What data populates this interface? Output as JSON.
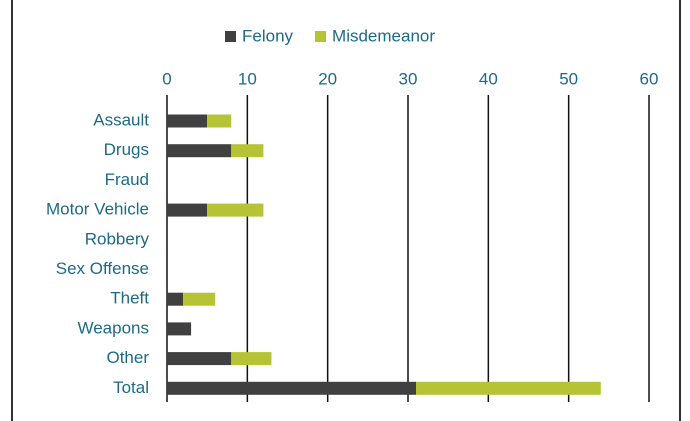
{
  "chart_data": {
    "type": "bar",
    "orientation": "horizontal",
    "stacked": true,
    "categories": [
      "Assault",
      "Drugs",
      "Fraud",
      "Motor Vehicle",
      "Robbery",
      "Sex Offense",
      "Theft",
      "Weapons",
      "Other",
      "Total"
    ],
    "series": [
      {
        "name": "Felony",
        "color": "#404040",
        "values": [
          5,
          8,
          0,
          5,
          0,
          0,
          2,
          3,
          8,
          31
        ]
      },
      {
        "name": "Misdemeanor",
        "color": "#b5c334",
        "values": [
          3,
          4,
          0,
          7,
          0,
          0,
          4,
          0,
          5,
          23
        ]
      }
    ],
    "xlim": [
      0,
      60
    ],
    "xticks": [
      0,
      10,
      20,
      30,
      40,
      50,
      60
    ],
    "grid": true,
    "legend": "top"
  }
}
